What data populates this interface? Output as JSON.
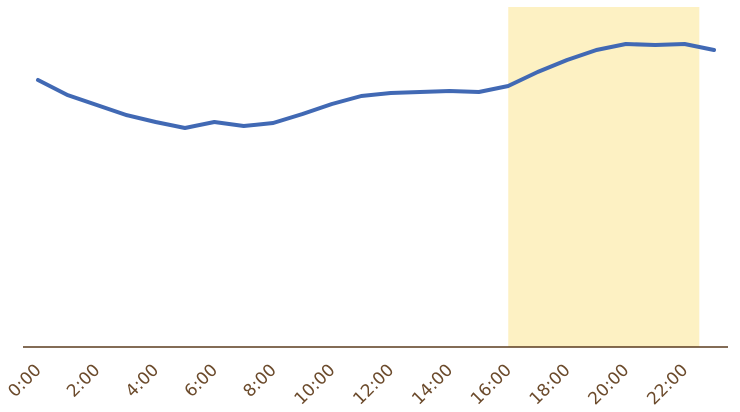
{
  "chart_data": {
    "type": "line",
    "categories": [
      "0:00",
      null,
      "2:00",
      null,
      "4:00",
      null,
      "6:00",
      null,
      "8:00",
      null,
      "10:00",
      null,
      "12:00",
      null,
      "14:00",
      null,
      "16:00",
      null,
      "18:00",
      null,
      "20:00",
      null,
      "22:00",
      null
    ],
    "values": [
      267,
      252,
      242,
      232,
      225,
      219,
      225,
      221,
      224,
      233,
      243,
      251,
      254,
      255,
      256,
      255,
      261,
      275,
      287,
      297,
      303,
      302,
      303,
      297
    ],
    "color": "#4169b4",
    "ylim": [
      0,
      340
    ],
    "highlight": {
      "range": [
        16,
        22.5
      ],
      "color": "#fdf1c3"
    },
    "axis_color": "#5a3b1e"
  }
}
